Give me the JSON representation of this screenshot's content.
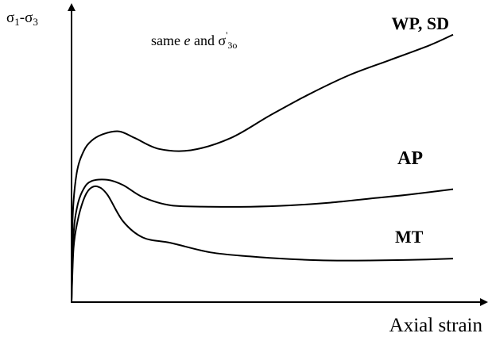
{
  "chart_data": {
    "type": "line",
    "title": "",
    "xlabel": "Axial strain",
    "ylabel": "σ1-σ3",
    "annotation": "same e and σ'3o",
    "grid": false,
    "legend": "none",
    "xlim": [
      0,
      10
    ],
    "ylim": [
      0,
      10
    ],
    "series": [
      {
        "name": "WP, SD",
        "color": "#000000",
        "x": [
          0,
          0.03,
          0.13,
          0.3,
          0.5,
          0.8,
          1.2,
          1.6,
          2.2,
          3.0,
          4.0,
          5.0,
          6.0,
          7.0,
          8.0,
          9.0,
          9.6
        ],
        "y": [
          0,
          3.2,
          4.8,
          5.6,
          6.0,
          6.25,
          6.35,
          6.1,
          5.7,
          5.65,
          6.1,
          6.95,
          7.75,
          8.45,
          9.0,
          9.55,
          9.95
        ]
      },
      {
        "name": "AP",
        "color": "#000000",
        "x": [
          0,
          0.05,
          0.15,
          0.3,
          0.5,
          0.9,
          1.3,
          1.8,
          2.5,
          3.5,
          4.5,
          5.5,
          6.5,
          7.5,
          8.5,
          9.6
        ],
        "y": [
          0,
          2.5,
          3.6,
          4.2,
          4.5,
          4.55,
          4.35,
          3.9,
          3.6,
          3.55,
          3.55,
          3.6,
          3.7,
          3.85,
          4.0,
          4.2
        ]
      },
      {
        "name": "MT",
        "color": "#000000",
        "x": [
          0,
          0.05,
          0.15,
          0.3,
          0.45,
          0.65,
          0.9,
          1.3,
          1.8,
          2.5,
          3.5,
          4.5,
          5.5,
          6.5,
          7.5,
          8.5,
          9.6
        ],
        "y": [
          0,
          2.0,
          3.0,
          3.8,
          4.2,
          4.3,
          4.0,
          3.0,
          2.4,
          2.2,
          1.85,
          1.7,
          1.6,
          1.55,
          1.55,
          1.57,
          1.62
        ]
      }
    ]
  }
}
